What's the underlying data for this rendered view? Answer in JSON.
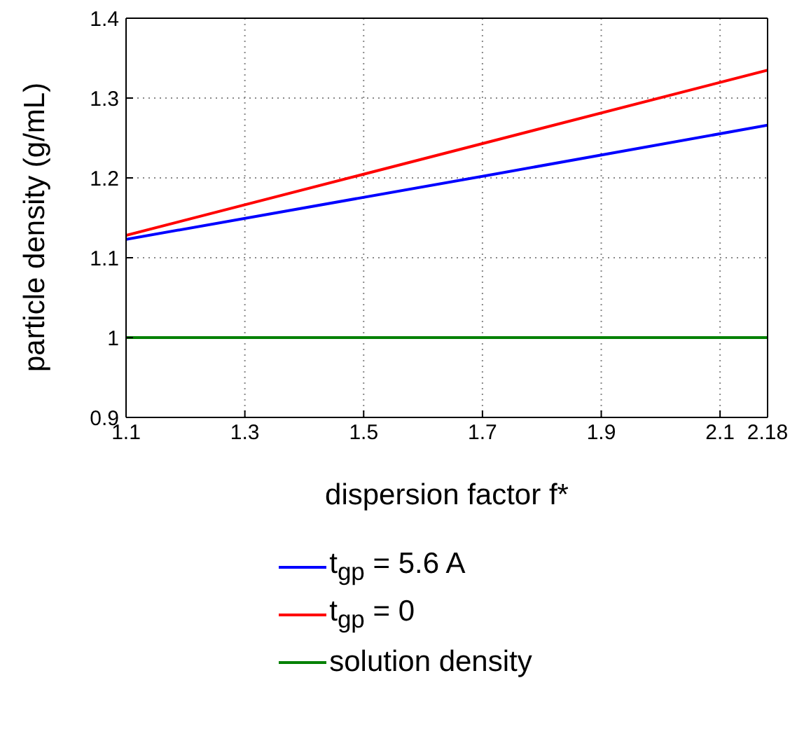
{
  "chart_data": {
    "type": "line",
    "xlabel": "dispersion factor f*",
    "ylabel": "particle density (g/mL)",
    "x": [
      1.1,
      1.7,
      2.18
    ],
    "series": [
      {
        "name": "t$_{gp}$ = 5.6 A",
        "color": "#0000ff",
        "values": [
          1.123,
          1.202,
          1.266
        ]
      },
      {
        "name": "t$_{gp}$ = 0",
        "color": "#ff0000",
        "values": [
          1.128,
          1.243,
          1.335
        ]
      },
      {
        "name": "solution density",
        "color": "#008000",
        "values": [
          1.0,
          1.0,
          1.0
        ]
      }
    ],
    "xlim": [
      1.1,
      2.18
    ],
    "xticks": [
      1.1,
      1.3,
      1.5,
      1.7,
      1.9,
      2.1,
      2.18
    ],
    "ylim": [
      0.9,
      1.4
    ],
    "yticks": [
      0.9,
      1,
      1.1,
      1.2,
      1.3,
      1.4
    ],
    "grid": true,
    "legend": "bottom",
    "marker": "none",
    "line_style": "solid"
  }
}
